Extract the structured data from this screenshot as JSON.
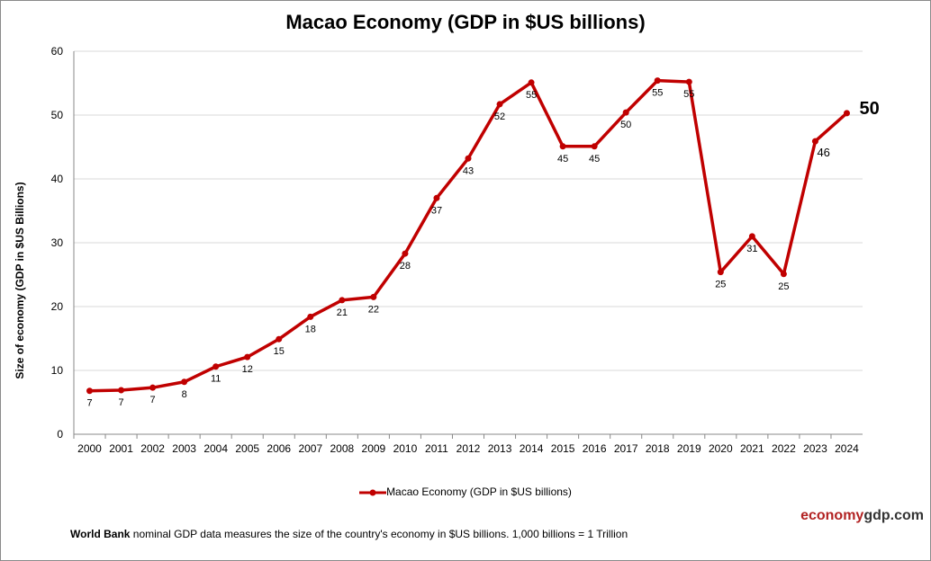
{
  "chart_data": {
    "type": "line",
    "title": "Macao Economy (GDP in $US billions)",
    "ylabel": "Size of economy (GDP in $US Billions)",
    "xlabel": "",
    "ylim": [
      0,
      60
    ],
    "yticks": [
      0,
      10,
      20,
      30,
      40,
      50,
      60
    ],
    "grid": true,
    "legend_position": "bottom",
    "categories": [
      "2000",
      "2001",
      "2002",
      "2003",
      "2004",
      "2005",
      "2006",
      "2007",
      "2008",
      "2009",
      "2010",
      "2011",
      "2012",
      "2013",
      "2014",
      "2015",
      "2016",
      "2017",
      "2018",
      "2019",
      "2020",
      "2021",
      "2022",
      "2023",
      "2024"
    ],
    "series": [
      {
        "name": "Macao Economy (GDP in $US billions)",
        "color": "#c00000",
        "values": [
          6.8,
          6.9,
          7.3,
          8.2,
          10.6,
          12.1,
          14.9,
          18.4,
          21.0,
          21.5,
          28.3,
          37.0,
          43.2,
          51.7,
          55.1,
          45.1,
          45.1,
          50.4,
          55.4,
          55.2,
          25.4,
          31.0,
          25.1,
          45.9,
          50.3
        ],
        "labels": [
          "7",
          "7",
          "7",
          "8",
          "11",
          "12",
          "15",
          "18",
          "21",
          "22",
          "28",
          "37",
          "43",
          "52",
          "55",
          "45",
          "45",
          "50",
          "55",
          "55",
          "25",
          "31",
          "25",
          "46",
          "50"
        ]
      }
    ]
  },
  "footer": {
    "brand_part1": "economy",
    "brand_part2": "gdp",
    "brand_part3": ".com",
    "note_bold": "World Bank",
    "note_text": " nominal GDP data  measures the size of the country's economy in $US billions. 1,000 billions = 1 Trillion"
  }
}
